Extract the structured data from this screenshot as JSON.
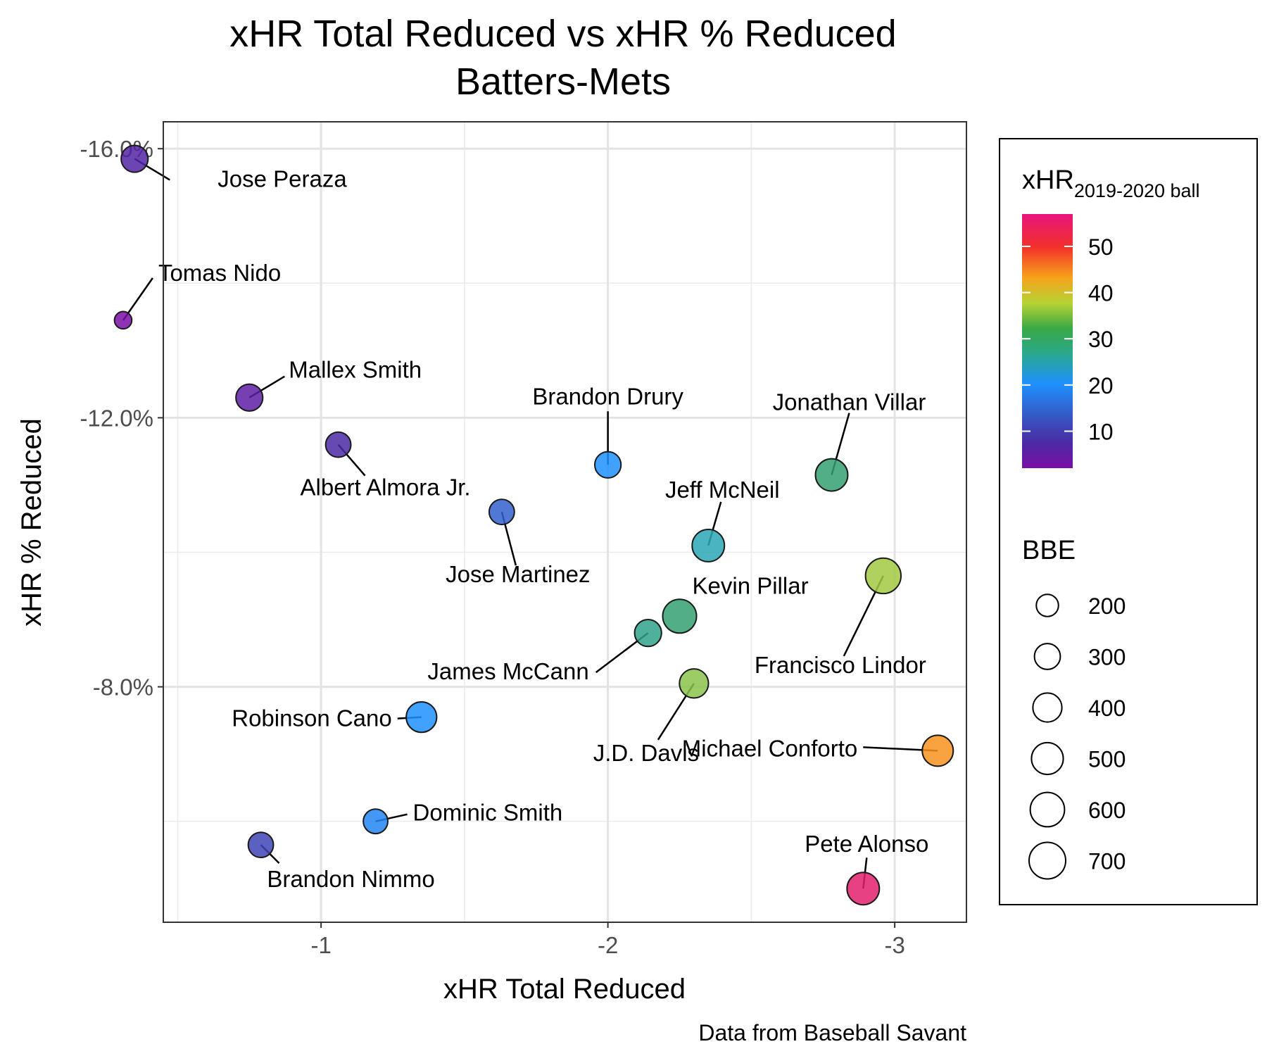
{
  "chart_data": {
    "type": "scatter",
    "title": "xHR Total Reduced vs xHR % Reduced",
    "subtitle": "Batters-Mets",
    "xlabel": "xHR Total Reduced",
    "ylabel": "xHR % Reduced",
    "caption": "Data from Baseball Savant",
    "x_reversed": true,
    "y_reversed": true,
    "xlim": [
      -0.45,
      -3.25
    ],
    "ylim": [
      -16.4,
      -4.5
    ],
    "x_ticks": [
      -1,
      -2,
      -3
    ],
    "x_tick_labels": [
      "-1",
      "-2",
      "-3"
    ],
    "y_ticks": [
      -16,
      -12,
      -8
    ],
    "y_tick_labels": [
      "-16.0%",
      "-12.0%",
      "-8.0%"
    ],
    "grid": true,
    "legend": {
      "color_title_main": "xHR",
      "color_title_sub": "2019-2020 ball",
      "color_range": [
        2,
        57
      ],
      "color_ticks": [
        10,
        20,
        30,
        40,
        50
      ],
      "color_tick_labels": [
        "10",
        "20",
        "30",
        "40",
        "50"
      ],
      "size_title": "BBE",
      "size_values": [
        200,
        300,
        400,
        500,
        600,
        700
      ],
      "size_labels": [
        "200",
        "300",
        "400",
        "500",
        "600",
        "700"
      ],
      "placement": "right"
    },
    "points": [
      {
        "name": "Jose Peraza",
        "x": -0.35,
        "y": -15.85,
        "xhr": 6,
        "bbe": 330
      },
      {
        "name": "Tomas Nido",
        "x": -0.31,
        "y": -13.45,
        "xhr": 2,
        "bbe": 100
      },
      {
        "name": "Mallex Smith",
        "x": -0.75,
        "y": -12.3,
        "xhr": 5,
        "bbe": 330
      },
      {
        "name": "Albert Almora Jr.",
        "x": -1.06,
        "y": -11.6,
        "xhr": 7,
        "bbe": 280
      },
      {
        "name": "Brandon Drury",
        "x": -2.0,
        "y": -11.3,
        "xhr": 18,
        "bbe": 310
      },
      {
        "name": "Jonathan Villar",
        "x": -2.78,
        "y": -11.15,
        "xhr": 27,
        "bbe": 520
      },
      {
        "name": "Jose Martinez",
        "x": -1.63,
        "y": -10.6,
        "xhr": 13,
        "bbe": 280
      },
      {
        "name": "Jeff McNeil",
        "x": -2.35,
        "y": -10.1,
        "xhr": 22,
        "bbe": 520
      },
      {
        "name": "Francisco Lindor",
        "x": -2.96,
        "y": -9.65,
        "xhr": 33,
        "bbe": 650
      },
      {
        "name": "Kevin Pillar",
        "x": -2.25,
        "y": -9.05,
        "xhr": 27,
        "bbe": 580
      },
      {
        "name": "James McCann",
        "x": -2.14,
        "y": -8.8,
        "xhr": 25,
        "bbe": 330
      },
      {
        "name": "J.D. Davis",
        "x": -2.3,
        "y": -8.05,
        "xhr": 31,
        "bbe": 400
      },
      {
        "name": "Robinson Cano",
        "x": -1.35,
        "y": -7.55,
        "xhr": 18,
        "bbe": 450
      },
      {
        "name": "Michael Conforto",
        "x": -3.15,
        "y": -7.05,
        "xhr": 41,
        "bbe": 470
      },
      {
        "name": "Dominic Smith",
        "x": -1.19,
        "y": -6.0,
        "xhr": 17,
        "bbe": 260
      },
      {
        "name": "Brandon Nimmo",
        "x": -0.79,
        "y": -5.65,
        "xhr": 10,
        "bbe": 280
      },
      {
        "name": "Pete Alonso",
        "x": -2.89,
        "y": -5.0,
        "xhr": 57,
        "bbe": 520
      }
    ]
  }
}
